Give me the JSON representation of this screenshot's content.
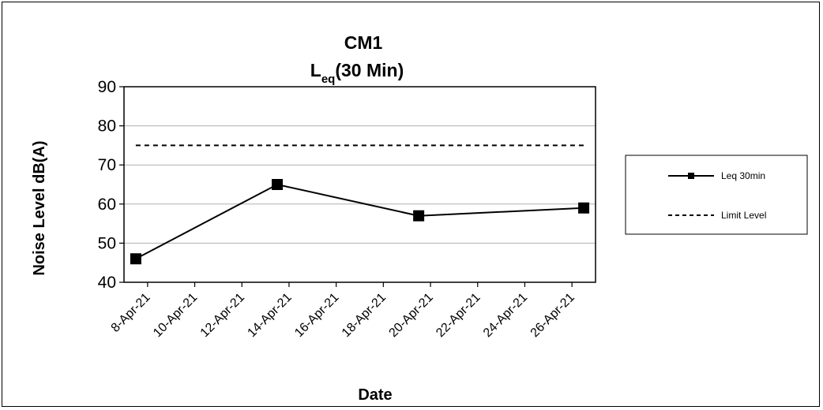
{
  "chart_data": {
    "type": "line",
    "title_main": "CM1",
    "title_sub_base": "L",
    "title_sub_subscript": "eq",
    "title_sub_rest": "(30 Min)",
    "xlabel": "Date",
    "ylabel": "Noise Level dB(A)",
    "ylim": [
      40,
      90
    ],
    "yticks": [
      "90",
      "80",
      "70",
      "60",
      "50",
      "40"
    ],
    "xlim": [
      "2021-04-07",
      "2021-04-27"
    ],
    "xticks": [
      {
        "date": "2021-04-08",
        "label": "8-Apr-21"
      },
      {
        "date": "2021-04-10",
        "label": "10-Apr-21"
      },
      {
        "date": "2021-04-12",
        "label": "12-Apr-21"
      },
      {
        "date": "2021-04-14",
        "label": "14-Apr-21"
      },
      {
        "date": "2021-04-16",
        "label": "16-Apr-21"
      },
      {
        "date": "2021-04-18",
        "label": "18-Apr-21"
      },
      {
        "date": "2021-04-20",
        "label": "20-Apr-21"
      },
      {
        "date": "2021-04-22",
        "label": "22-Apr-21"
      },
      {
        "date": "2021-04-24",
        "label": "24-Apr-21"
      },
      {
        "date": "2021-04-26",
        "label": "26-Apr-21"
      }
    ],
    "grid": "horizontal",
    "legend_position": "right",
    "series": [
      {
        "name": "Leq 30min",
        "style": "solid-square-markers",
        "color": "#000000",
        "points": [
          {
            "x": "2021-04-07T12:00",
            "y": 46
          },
          {
            "x": "2021-04-13T12:00",
            "y": 65
          },
          {
            "x": "2021-04-19T12:00",
            "y": 57
          },
          {
            "x": "2021-04-26T12:00",
            "y": 59
          }
        ]
      },
      {
        "name": "Limit Level",
        "style": "dashed",
        "color": "#000000",
        "points": [
          {
            "x": "2021-04-07T12:00",
            "y": 75
          },
          {
            "x": "2021-04-26T12:00",
            "y": 75
          }
        ]
      }
    ]
  }
}
